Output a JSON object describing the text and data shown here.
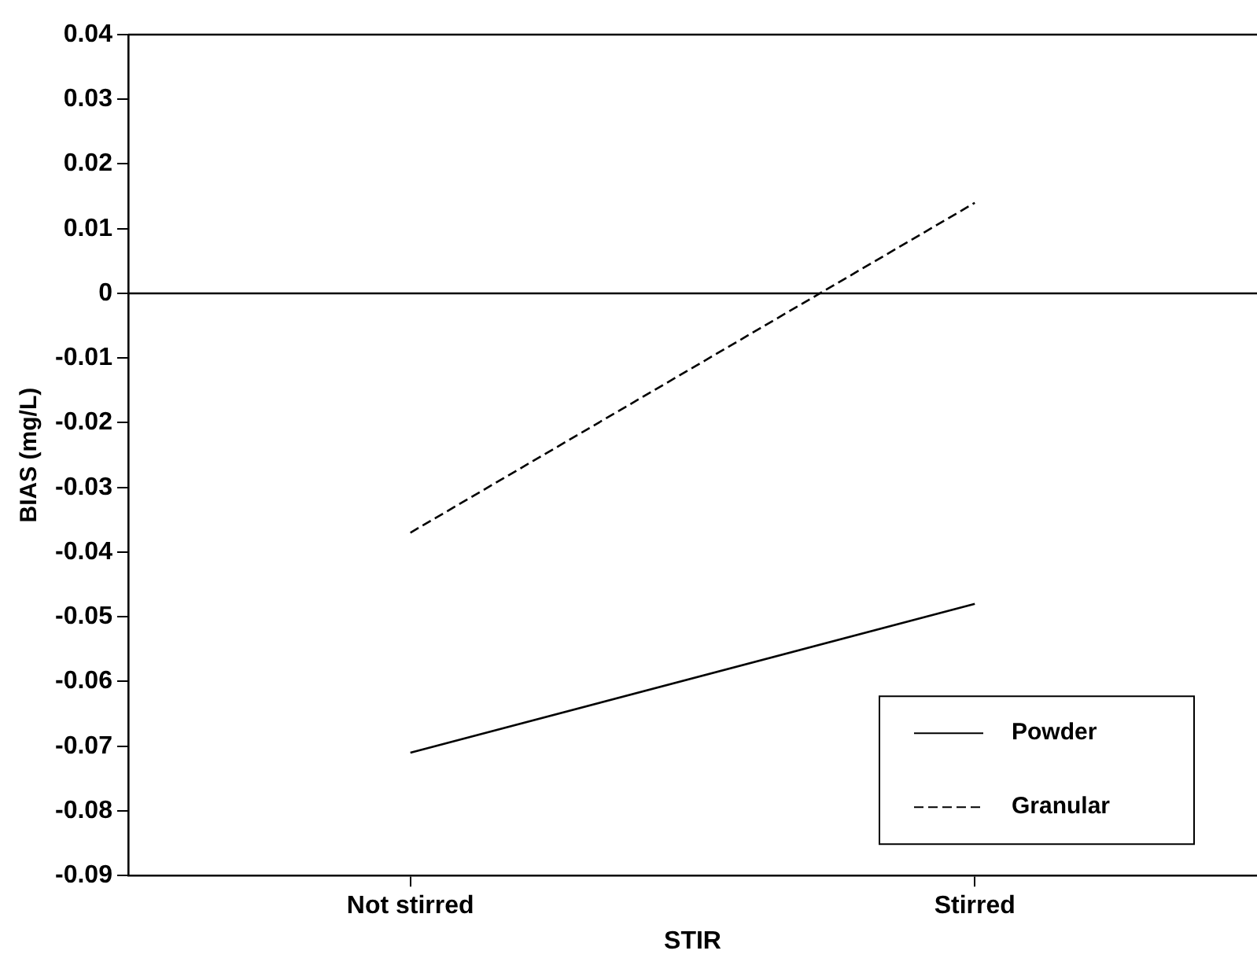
{
  "chart_data": {
    "type": "line",
    "xlabel": "STIR",
    "ylabel": "BIAS (mg/L)",
    "categories": [
      "Not stirred",
      "Stirred"
    ],
    "series": [
      {
        "name": "Powder",
        "color": "#000000",
        "values": [
          -0.071,
          -0.048
        ],
        "line_style": "solid"
      },
      {
        "name": "Granular",
        "color": "#000000",
        "values": [
          -0.037,
          0.014
        ],
        "line_style": "dashed"
      }
    ],
    "ylim": [
      -0.09,
      0.04
    ],
    "yticks": [
      -0.09,
      -0.08,
      -0.07,
      -0.06,
      -0.05,
      -0.04,
      -0.03,
      -0.02,
      -0.01,
      0,
      0.01,
      0.02,
      0.03,
      0.04
    ],
    "ref_lines": [
      {
        "axis": "y",
        "value": 0,
        "color": "#000000"
      }
    ],
    "grid": false,
    "legend": "bottom right",
    "marker": "none"
  }
}
